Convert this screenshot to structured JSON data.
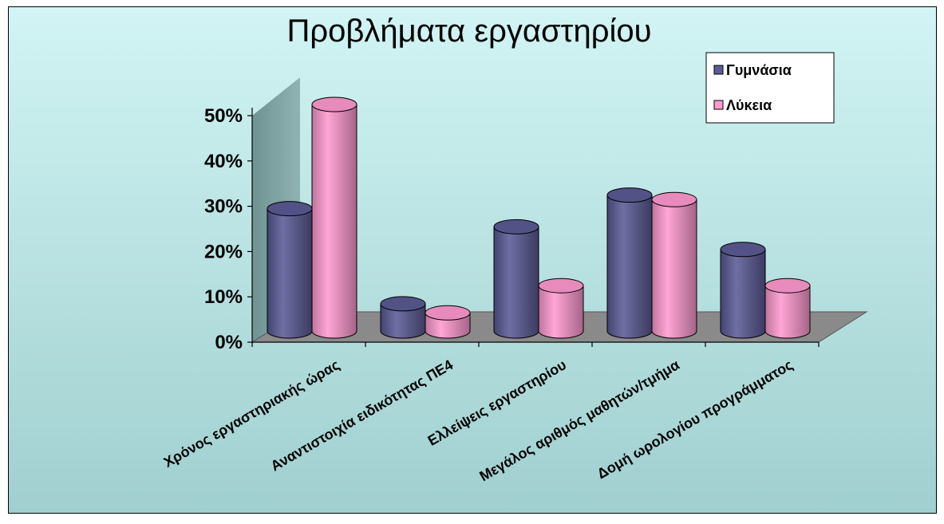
{
  "chart_data": {
    "type": "bar",
    "style": "3d-cylinder",
    "title": "Προβλήματα εργαστηρίου",
    "categories": [
      "Χρόνος εργαστηριακής ώρας",
      "Αναντιστοιχία ειδικότητας ΠΕ4",
      "Ελλείψεις εργαστηρίου",
      "Μεγάλος αριθμός μαθητών/τμήμα",
      "Δομή ωρολογίου προγράμματος"
    ],
    "series": [
      {
        "name": "Γυμνάσια",
        "values": [
          27,
          6,
          23,
          30,
          18
        ],
        "color": "#5b5b96"
      },
      {
        "name": "Λύκεια",
        "values": [
          50,
          4,
          10,
          29,
          10
        ],
        "color": "#ff9ad0"
      }
    ],
    "y_ticks": [
      "0%",
      "10%",
      "20%",
      "30%",
      "40%",
      "50%"
    ],
    "ylim": [
      0,
      50
    ],
    "y_unit": "%",
    "legend_position": "top-right",
    "gridlines": false,
    "background": [
      "#d2f4f4",
      "#a0cfcf"
    ],
    "wall_color": "#789c9c",
    "floor_color": "#8a8a8a"
  }
}
